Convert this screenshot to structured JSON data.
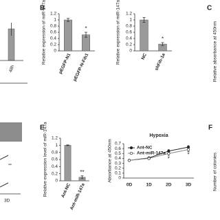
{
  "panel_labels": [
    "B",
    "C",
    "E",
    "F"
  ],
  "fragments": {
    "top_left_label": "48h",
    "bottom_left_label": "3D",
    "bottom_left_sig": "**",
    "c_axis_label": "Relative absorbance at 450nm",
    "f_axis_label": "Number of colonies"
  },
  "chart_data": [
    {
      "type": "bar",
      "y_label": "Relative expression of miR-147a",
      "categories": [
        "pEGFP-N1",
        "pEGFP-N-Fih1"
      ],
      "values": [
        1.0,
        0.52
      ],
      "errors": [
        0.05,
        0.08
      ],
      "annotations": [
        null,
        "*"
      ],
      "color": "#9a9a9a",
      "ylim": [
        0,
        1.2
      ],
      "yticks": [
        0,
        0.2,
        0.4,
        0.6,
        0.8,
        1,
        1.2
      ]
    },
    {
      "type": "bar",
      "y_label": "Relative expression of miR-147a",
      "categories": [
        "NC",
        "shFih-1a"
      ],
      "values": [
        1.0,
        0.22
      ],
      "errors": [
        0.08,
        0.05
      ],
      "annotations": [
        null,
        "*"
      ],
      "color": "#9a9a9a",
      "ylim": [
        0,
        1.2
      ],
      "yticks": [
        0,
        0.2,
        0.4,
        0.6,
        0.8,
        1,
        1.2
      ]
    },
    {
      "type": "bar",
      "y_label": "Relative expression level of miR-147a",
      "categories": [
        "Ant-NC",
        "Ant-miR-147a"
      ],
      "values": [
        1.0,
        0.1
      ],
      "errors": [
        0.01,
        0.04
      ],
      "annotations": [
        null,
        "**"
      ],
      "color": "#9a9a9a",
      "ylim": [
        0,
        1.2
      ],
      "yticks": [
        0,
        0.2,
        0.4,
        0.6,
        0.8,
        1,
        1.2
      ]
    },
    {
      "type": "line",
      "title": "Hypoxia",
      "y_label": "Absorbance at 450nm",
      "categories": [
        "0D",
        "1D",
        "2D",
        "3D"
      ],
      "series": [
        {
          "name": "Ant-NC",
          "color": "#222222",
          "values": [
            0.36,
            0.41,
            0.55,
            0.63
          ],
          "errors": [
            0.01,
            0.02,
            0.03,
            0.03
          ]
        },
        {
          "name": "Ant-miR-147a",
          "color": "#888888",
          "values": [
            0.36,
            0.4,
            0.5,
            0.58
          ],
          "errors": [
            0.01,
            0.02,
            0.04,
            0.04
          ]
        }
      ],
      "annotations": [
        null,
        null,
        "*",
        "*"
      ],
      "ylim": [
        0,
        0.7
      ],
      "yticks": [
        0,
        0.1,
        0.2,
        0.3,
        0.4,
        0.5,
        0.6,
        0.7
      ]
    }
  ]
}
